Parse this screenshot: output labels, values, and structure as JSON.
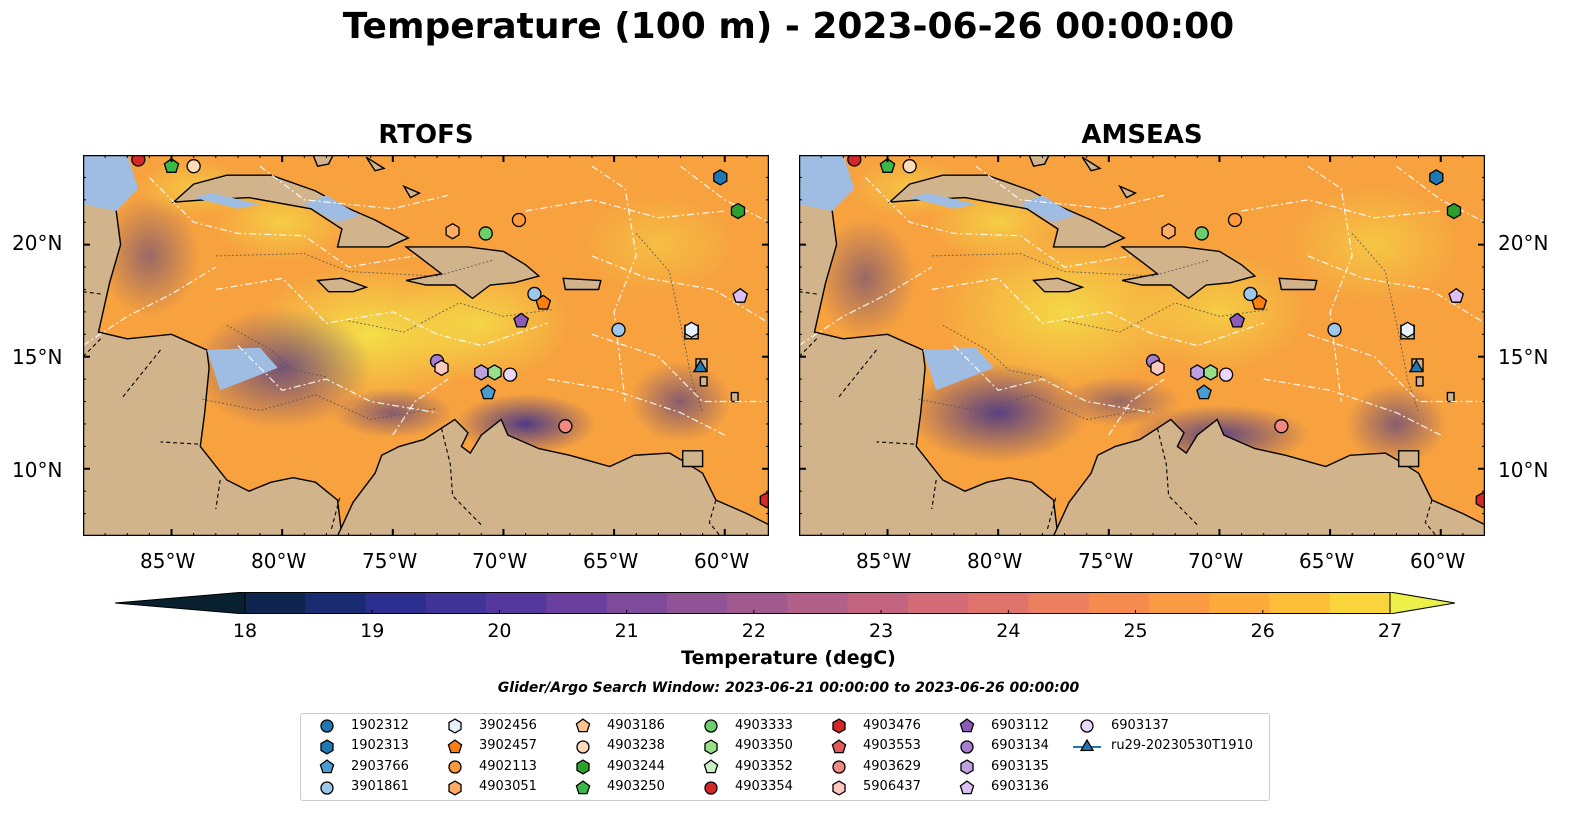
{
  "title": "Temperature (100 m) - 2023-06-26 00:00:00",
  "panels": [
    {
      "title": "RTOFS"
    },
    {
      "title": "AMSEAS"
    }
  ],
  "axes": {
    "x_ticks": [
      "85°W",
      "80°W",
      "75°W",
      "70°W",
      "65°W",
      "60°W"
    ],
    "y_ticks": [
      "20°N",
      "15°N",
      "10°N"
    ],
    "x_range": [
      -89,
      -58
    ],
    "y_range": [
      7,
      24
    ]
  },
  "colorbar": {
    "label": "Temperature (degC)",
    "ticks": [
      "18",
      "19",
      "20",
      "21",
      "22",
      "23",
      "24",
      "25",
      "26",
      "27"
    ],
    "range": [
      18,
      27
    ],
    "colors": [
      "#08202f",
      "#0f2550",
      "#1a2b72",
      "#2c2f8f",
      "#413498",
      "#55389c",
      "#6a3f9e",
      "#7d4a9c",
      "#8f5396",
      "#a05a8f",
      "#b26088",
      "#c36580",
      "#d36c77",
      "#e0746c",
      "#ec7f5e",
      "#f58b4f",
      "#fa9a42",
      "#fdab3a",
      "#fdbd38",
      "#f9d43d",
      "#ecf049"
    ]
  },
  "search_window": "Glider/Argo Search Window: 2023-06-21 00:00:00 to 2023-06-26 00:00:00",
  "legend": [
    {
      "id": "1902312",
      "marker": "circle",
      "color": "#1f77b4"
    },
    {
      "id": "1902313",
      "marker": "hexagon",
      "color": "#1f77b4"
    },
    {
      "id": "2903766",
      "marker": "pentagon",
      "color": "#4a9bd0"
    },
    {
      "id": "3901861",
      "marker": "circle",
      "color": "#9ec8ea"
    },
    {
      "id": "3902456",
      "marker": "hexagon",
      "color": "#e8f1fb"
    },
    {
      "id": "3902457",
      "marker": "pentagon",
      "color": "#ff7f0e"
    },
    {
      "id": "4902113",
      "marker": "circle",
      "color": "#ff9a3c"
    },
    {
      "id": "4903051",
      "marker": "hexagon",
      "color": "#ffad66"
    },
    {
      "id": "4903186",
      "marker": "pentagon",
      "color": "#ffc48c"
    },
    {
      "id": "4903238",
      "marker": "circle",
      "color": "#ffdcb8"
    },
    {
      "id": "4903244",
      "marker": "hexagon",
      "color": "#2ca02c"
    },
    {
      "id": "4903250",
      "marker": "pentagon",
      "color": "#3cb84a"
    },
    {
      "id": "4903333",
      "marker": "circle",
      "color": "#6cce6c"
    },
    {
      "id": "4903350",
      "marker": "hexagon",
      "color": "#98df8a"
    },
    {
      "id": "4903352",
      "marker": "pentagon",
      "color": "#c8f0c0"
    },
    {
      "id": "4903354",
      "marker": "circle",
      "color": "#d62728"
    },
    {
      "id": "4903476",
      "marker": "hexagon",
      "color": "#d62728"
    },
    {
      "id": "4903553",
      "marker": "pentagon",
      "color": "#e35a5a"
    },
    {
      "id": "4903629",
      "marker": "circle",
      "color": "#ee8a82"
    },
    {
      "id": "5906437",
      "marker": "hexagon",
      "color": "#ffc8c0"
    },
    {
      "id": "6903112",
      "marker": "pentagon",
      "color": "#8a5cb8"
    },
    {
      "id": "6903134",
      "marker": "circle",
      "color": "#a57fcf"
    },
    {
      "id": "6903135",
      "marker": "hexagon",
      "color": "#bfa0e0"
    },
    {
      "id": "6903136",
      "marker": "pentagon",
      "color": "#dcc0f4"
    },
    {
      "id": "6903137",
      "marker": "circle",
      "color": "#ead6fb"
    },
    {
      "id": "ru29-20230530T1910",
      "marker": "triangle",
      "color": "#1f77b4",
      "line": true
    }
  ],
  "observations": [
    {
      "id": "4903354",
      "lon": -86.5,
      "lat": 23.8
    },
    {
      "id": "4903250",
      "lon": -85.0,
      "lat": 23.5
    },
    {
      "id": "4903238",
      "lon": -84.0,
      "lat": 23.5
    },
    {
      "id": "1902313",
      "lon": -60.2,
      "lat": 23.0
    },
    {
      "id": "4903244",
      "lon": -59.4,
      "lat": 21.5
    },
    {
      "id": "4902113",
      "lon": -69.3,
      "lat": 21.1
    },
    {
      "id": "4903051",
      "lon": -72.3,
      "lat": 20.6
    },
    {
      "id": "4903333",
      "lon": -70.8,
      "lat": 20.5
    },
    {
      "id": "6903136",
      "lon": -59.3,
      "lat": 17.7
    },
    {
      "id": "3901861",
      "lon": -68.6,
      "lat": 17.8
    },
    {
      "id": "3902457",
      "lon": -68.2,
      "lat": 17.4
    },
    {
      "id": "6903112",
      "lon": -69.2,
      "lat": 16.6
    },
    {
      "id": "3901861",
      "lon": -64.8,
      "lat": 16.2
    },
    {
      "id": "3902456",
      "lon": -61.5,
      "lat": 16.2
    },
    {
      "id": "6903134",
      "lon": -73.0,
      "lat": 14.8
    },
    {
      "id": "5906437",
      "lon": -72.8,
      "lat": 14.5
    },
    {
      "id": "6903135",
      "lon": -71.0,
      "lat": 14.3
    },
    {
      "id": "4903350",
      "lon": -70.4,
      "lat": 14.3
    },
    {
      "id": "6903137",
      "lon": -69.7,
      "lat": 14.2
    },
    {
      "id": "2903766",
      "lon": -70.7,
      "lat": 13.4
    },
    {
      "id": "ru29-20230530T1910",
      "lon": -61.1,
      "lat": 14.5
    },
    {
      "id": "4903629",
      "lon": -67.2,
      "lat": 11.9
    },
    {
      "id": "4903476",
      "lon": -58.1,
      "lat": 8.6
    }
  ]
}
